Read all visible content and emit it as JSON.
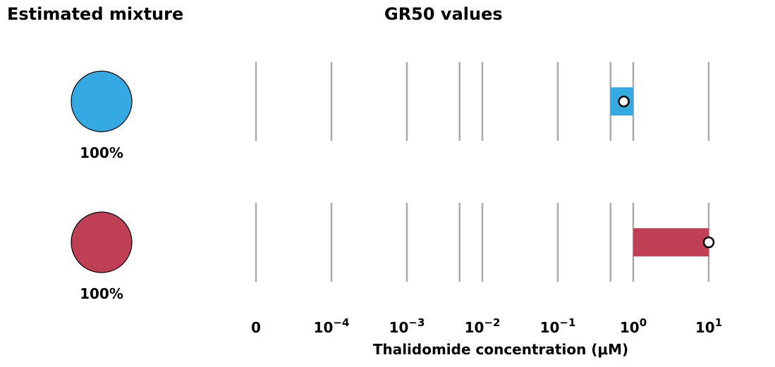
{
  "left_title": "Estimated mixture",
  "chart_data": {
    "type": "interval",
    "title": "GR50 values",
    "xlabel": "Thalidomide concentration (μM)",
    "xscale": "log",
    "x_ticks": [
      {
        "value": 0,
        "base": "0",
        "exp": ""
      },
      {
        "value": 0.0001,
        "base": "10",
        "exp": "−4"
      },
      {
        "value": 0.001,
        "base": "10",
        "exp": "−3"
      },
      {
        "value": 0.01,
        "base": "10",
        "exp": "−2"
      },
      {
        "value": 0.1,
        "base": "10",
        "exp": "−1"
      },
      {
        "value": 1,
        "base": "10",
        "exp": "0"
      },
      {
        "value": 10,
        "base": "10",
        "exp": "1"
      }
    ],
    "minor_gridlines": [
      0.005,
      0.5
    ],
    "rows": [
      {
        "color": "#35a9e2",
        "mixture_pct": "100%",
        "gr50": 0.75,
        "range": [
          0.5,
          1.0
        ]
      },
      {
        "color": "#bf4055",
        "mixture_pct": "100%",
        "gr50": 10,
        "range": [
          1.0,
          10
        ]
      }
    ]
  }
}
